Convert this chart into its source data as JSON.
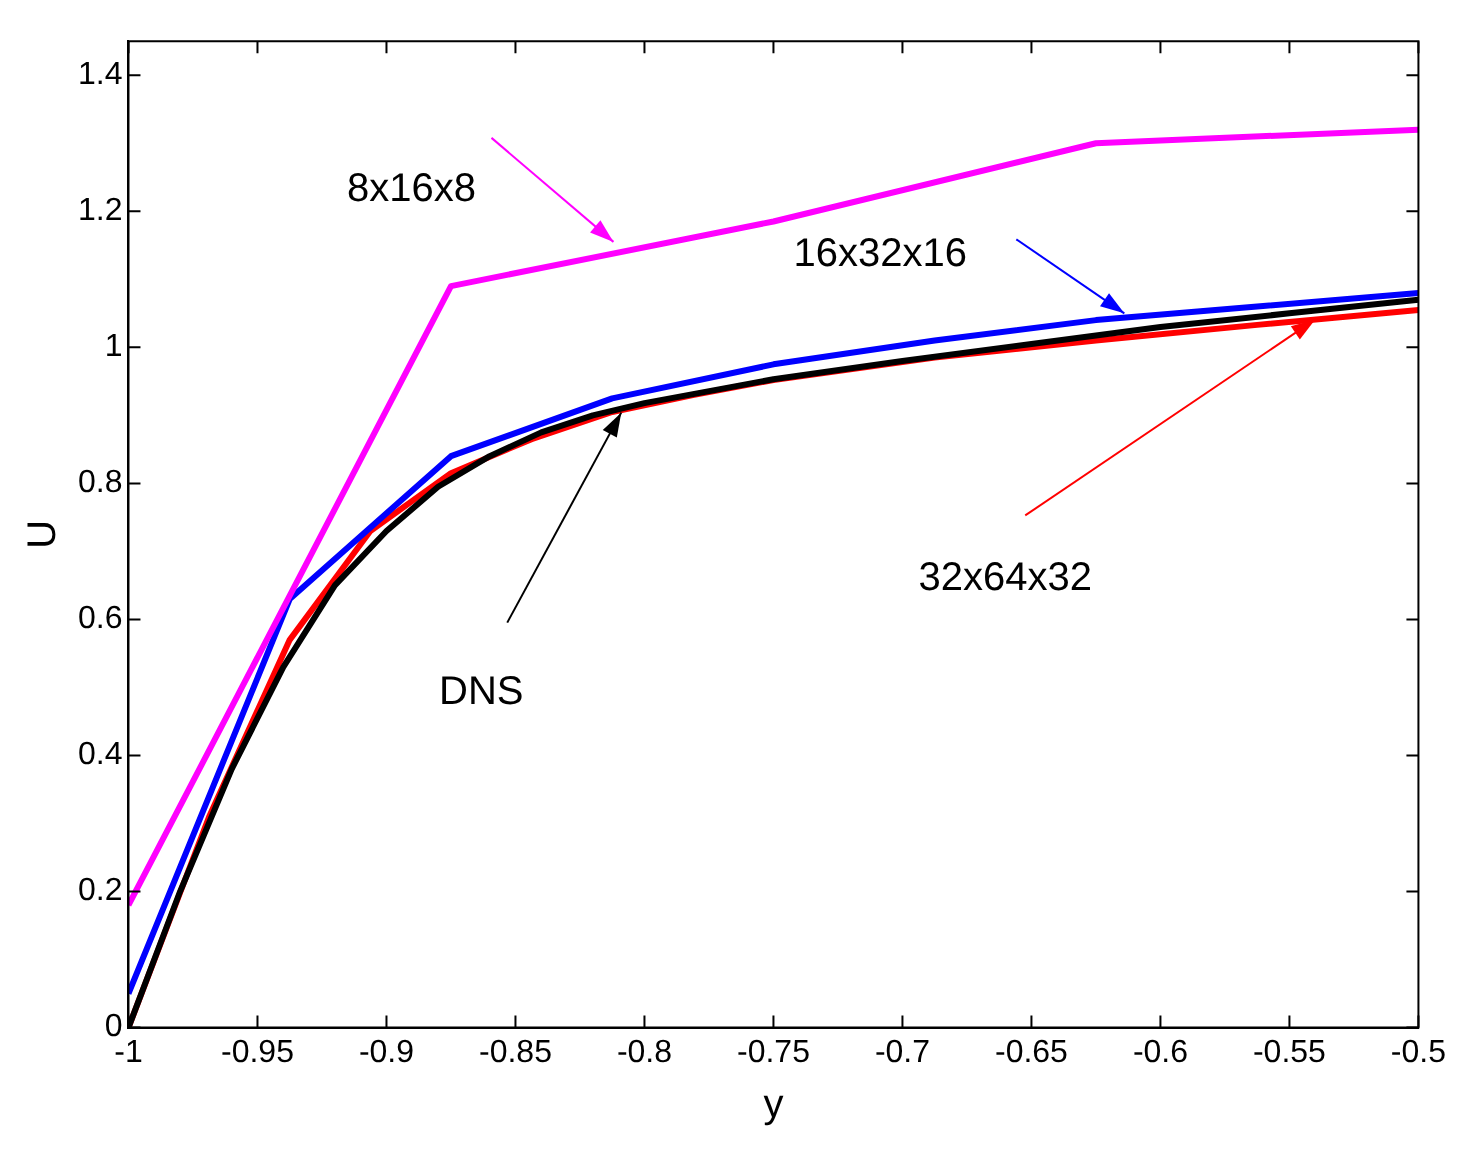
{
  "chart_data": {
    "type": "line",
    "xlabel": "y",
    "ylabel": "U",
    "xlim": [
      -1,
      -0.5
    ],
    "ylim": [
      0,
      1.45
    ],
    "xticks": [
      -1,
      -0.95,
      -0.9,
      -0.85,
      -0.8,
      -0.75,
      -0.7,
      -0.65,
      -0.6,
      -0.55,
      -0.5
    ],
    "yticks": [
      0,
      0.2,
      0.4,
      0.6,
      0.8,
      1,
      1.2,
      1.4
    ],
    "grid": false,
    "legend": false,
    "marker": "none",
    "line_style": "solid",
    "series": [
      {
        "color": "#000000",
        "x": [
          -1,
          -0.98,
          -0.96,
          -0.94,
          -0.92,
          -0.9,
          -0.88,
          -0.86,
          -0.84,
          -0.82,
          -0.8,
          -0.75,
          -0.7,
          -0.65,
          -0.6,
          -0.55,
          -0.5
        ],
        "values": [
          0,
          0.2,
          0.38,
          0.53,
          0.65,
          0.73,
          0.795,
          0.84,
          0.875,
          0.9,
          0.918,
          0.953,
          0.98,
          1.005,
          1.03,
          1.05,
          1.07
        ]
      },
      {
        "color": "#ff00ff",
        "x": [
          -1,
          -0.875,
          -0.75,
          -0.625,
          -0.5
        ],
        "values": [
          0.18,
          1.09,
          1.185,
          1.3,
          1.32
        ]
      },
      {
        "color": "#0000ff",
        "x": [
          -1,
          -0.9375,
          -0.875,
          -0.8125,
          -0.75,
          -0.6875,
          -0.625,
          -0.5625,
          -0.5
        ],
        "values": [
          0.05,
          0.63,
          0.84,
          0.925,
          0.975,
          1.01,
          1.04,
          1.06,
          1.08
        ]
      },
      {
        "color": "#ff0000",
        "x": [
          -1,
          -0.96875,
          -0.9375,
          -0.90625,
          -0.875,
          -0.84375,
          -0.8125,
          -0.78125,
          -0.75,
          -0.6875,
          -0.625,
          -0.5625,
          -0.5
        ],
        "values": [
          0,
          0.31,
          0.57,
          0.73,
          0.815,
          0.865,
          0.905,
          0.93,
          0.952,
          0.985,
          1.01,
          1.033,
          1.055
        ]
      }
    ],
    "annotations": [
      {
        "text": "DNS",
        "x": -0.809,
        "y": 0.904
      },
      {
        "text": "8x16x8",
        "x": -0.812,
        "y": 1.155
      },
      {
        "text": "16x32x16",
        "x": -0.614,
        "y": 1.05
      },
      {
        "text": "32x64x32",
        "x": -0.54,
        "y": 1.041
      }
    ]
  }
}
